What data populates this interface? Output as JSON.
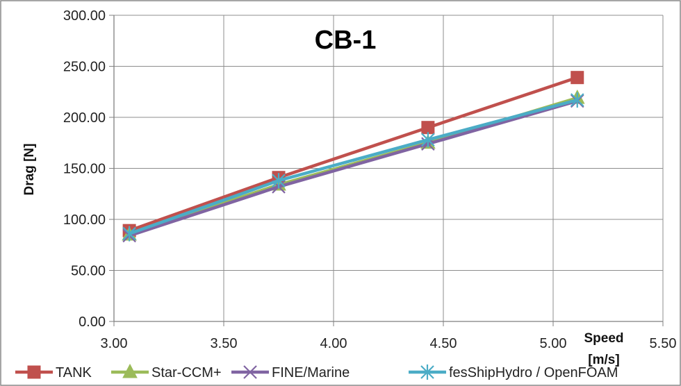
{
  "chart_data": {
    "type": "line",
    "title": "CB-1",
    "xlabel_line1": "Speed",
    "xlabel_line2": "[m/s]",
    "ylabel": "Drag [N]",
    "xlim": [
      3.0,
      5.5
    ],
    "ylim": [
      0,
      300
    ],
    "x_ticks": [
      "3.00",
      "3.50",
      "4.00",
      "4.50",
      "5.00",
      "5.50"
    ],
    "y_ticks": [
      "0.00",
      "50.00",
      "100.00",
      "150.00",
      "200.00",
      "250.00",
      "300.00"
    ],
    "x_tick_values": [
      3.0,
      3.5,
      4.0,
      4.5,
      5.0,
      5.5
    ],
    "y_tick_values": [
      0,
      50,
      100,
      150,
      200,
      250,
      300
    ],
    "grid": true,
    "legend_position": "bottom",
    "x": [
      3.07,
      3.75,
      4.43,
      5.11
    ],
    "series": [
      {
        "name": "TANK",
        "values": [
          89,
          141,
          190,
          239
        ],
        "color": "#C0504D",
        "marker": "square"
      },
      {
        "name": "Star-CCM+",
        "values": [
          85,
          134,
          175,
          219
        ],
        "color": "#9BBB59",
        "marker": "triangle"
      },
      {
        "name": "FINE/Marine",
        "values": [
          84,
          132,
          174,
          216
        ],
        "color": "#8064A2",
        "marker": "x"
      },
      {
        "name": "fesShipHydro / OpenFOAM",
        "values": [
          86,
          138,
          178,
          217
        ],
        "color": "#4BACC6",
        "marker": "asterisk"
      }
    ]
  }
}
